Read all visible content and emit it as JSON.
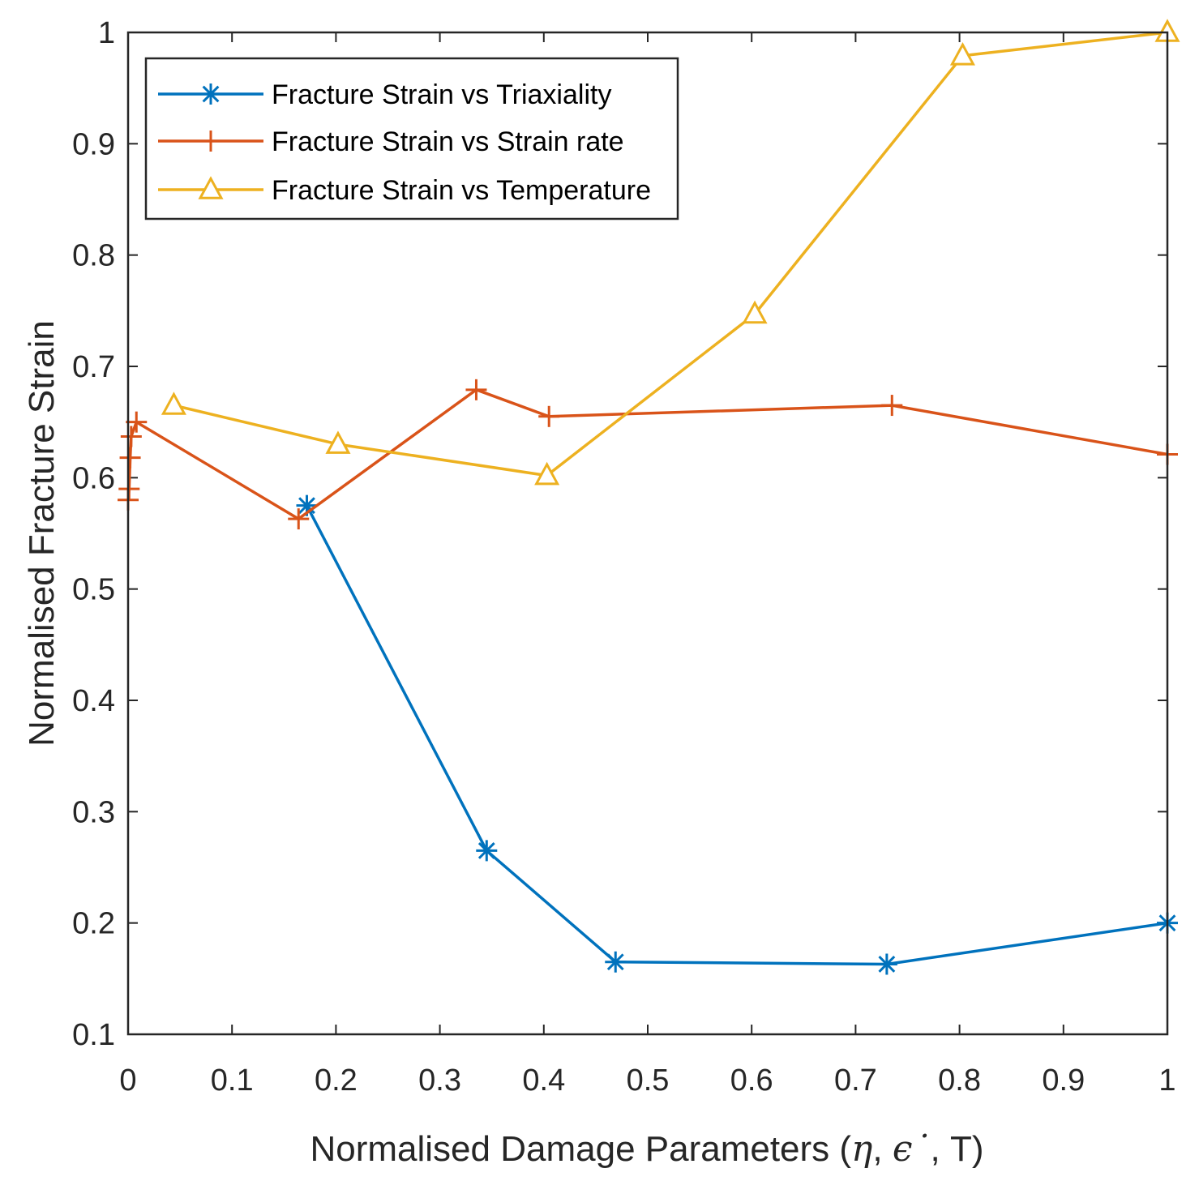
{
  "chart_data": {
    "type": "line",
    "title": "",
    "xlabel": {
      "prefix": "Normalised Damage Parameters (",
      "eta": "η",
      "sep1": ", ",
      "eps": "ϵ˙",
      "sep2": ", T)"
    },
    "ylabel": "Normalised Fracture Strain",
    "xlim": [
      0,
      1
    ],
    "ylim": [
      0.1,
      1
    ],
    "xticks": [
      "0",
      "0.1",
      "0.2",
      "0.3",
      "0.4",
      "0.5",
      "0.6",
      "0.7",
      "0.8",
      "0.9",
      "1"
    ],
    "yticks": [
      "0.1",
      "0.2",
      "0.3",
      "0.4",
      "0.5",
      "0.6",
      "0.7",
      "0.8",
      "0.9",
      "1"
    ],
    "grid": false,
    "legend_position": "top-left",
    "series": [
      {
        "name": "Fracture Strain vs Triaxiality",
        "color": "#0072BD",
        "marker": "asterisk",
        "x": [
          0.172,
          0.345,
          0.469,
          0.73,
          1.0
        ],
        "y": [
          0.575,
          0.265,
          0.165,
          0.163,
          0.2
        ]
      },
      {
        "name": "Fracture Strain vs Strain rate",
        "color": "#D95319",
        "marker": "plus",
        "x": [
          0.0,
          0.001,
          0.002,
          0.003,
          0.008,
          0.164,
          0.335,
          0.405,
          0.735,
          1.0
        ],
        "y": [
          0.58,
          0.59,
          0.618,
          0.637,
          0.65,
          0.563,
          0.679,
          0.655,
          0.665,
          0.621
        ]
      },
      {
        "name": "Fracture Strain vs Temperature",
        "color": "#EDB120",
        "marker": "triangle",
        "x": [
          0.044,
          0.202,
          0.403,
          0.603,
          0.803,
          1.0
        ],
        "y": [
          0.665,
          0.63,
          0.602,
          0.747,
          0.979,
          1.0
        ]
      }
    ]
  }
}
